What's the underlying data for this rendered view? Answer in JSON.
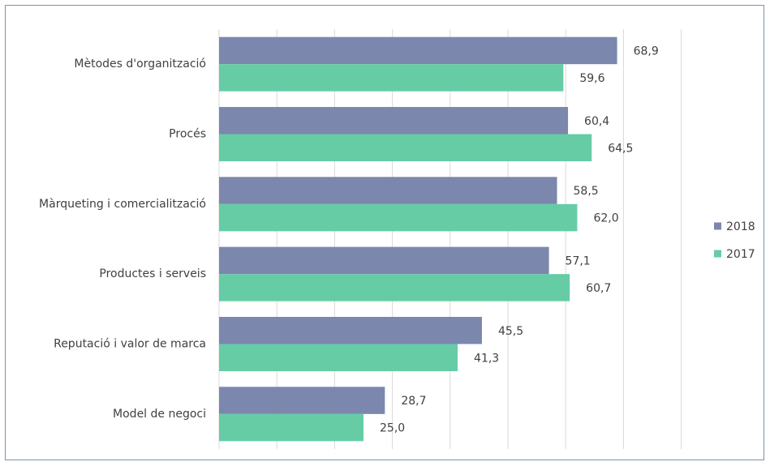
{
  "chart_data": {
    "type": "bar",
    "orientation": "horizontal",
    "categories": [
      "Mètodes d'organització",
      "Procés",
      "Màrqueting i comercialització",
      "Productes i serveis",
      "Reputació i valor de marca",
      "Model de negoci"
    ],
    "series": [
      {
        "name": "2018",
        "color": "#7b87ad",
        "values": [
          68.9,
          60.4,
          58.5,
          57.1,
          45.5,
          28.7
        ],
        "value_labels": [
          "68,9",
          "60,4",
          "58,5",
          "57,1",
          "45,5",
          "28,7"
        ]
      },
      {
        "name": "2017",
        "color": "#66cca6",
        "values": [
          59.6,
          64.5,
          62.0,
          60.7,
          41.3,
          25.0
        ],
        "value_labels": [
          "59,6",
          "64,5",
          "62,0",
          "60,7",
          "41,3",
          "25,0"
        ]
      }
    ],
    "xlim": [
      0,
      80
    ],
    "xticks": [
      0,
      10,
      20,
      30,
      40,
      50,
      60,
      70,
      80
    ],
    "grid": true,
    "legend": "right"
  }
}
